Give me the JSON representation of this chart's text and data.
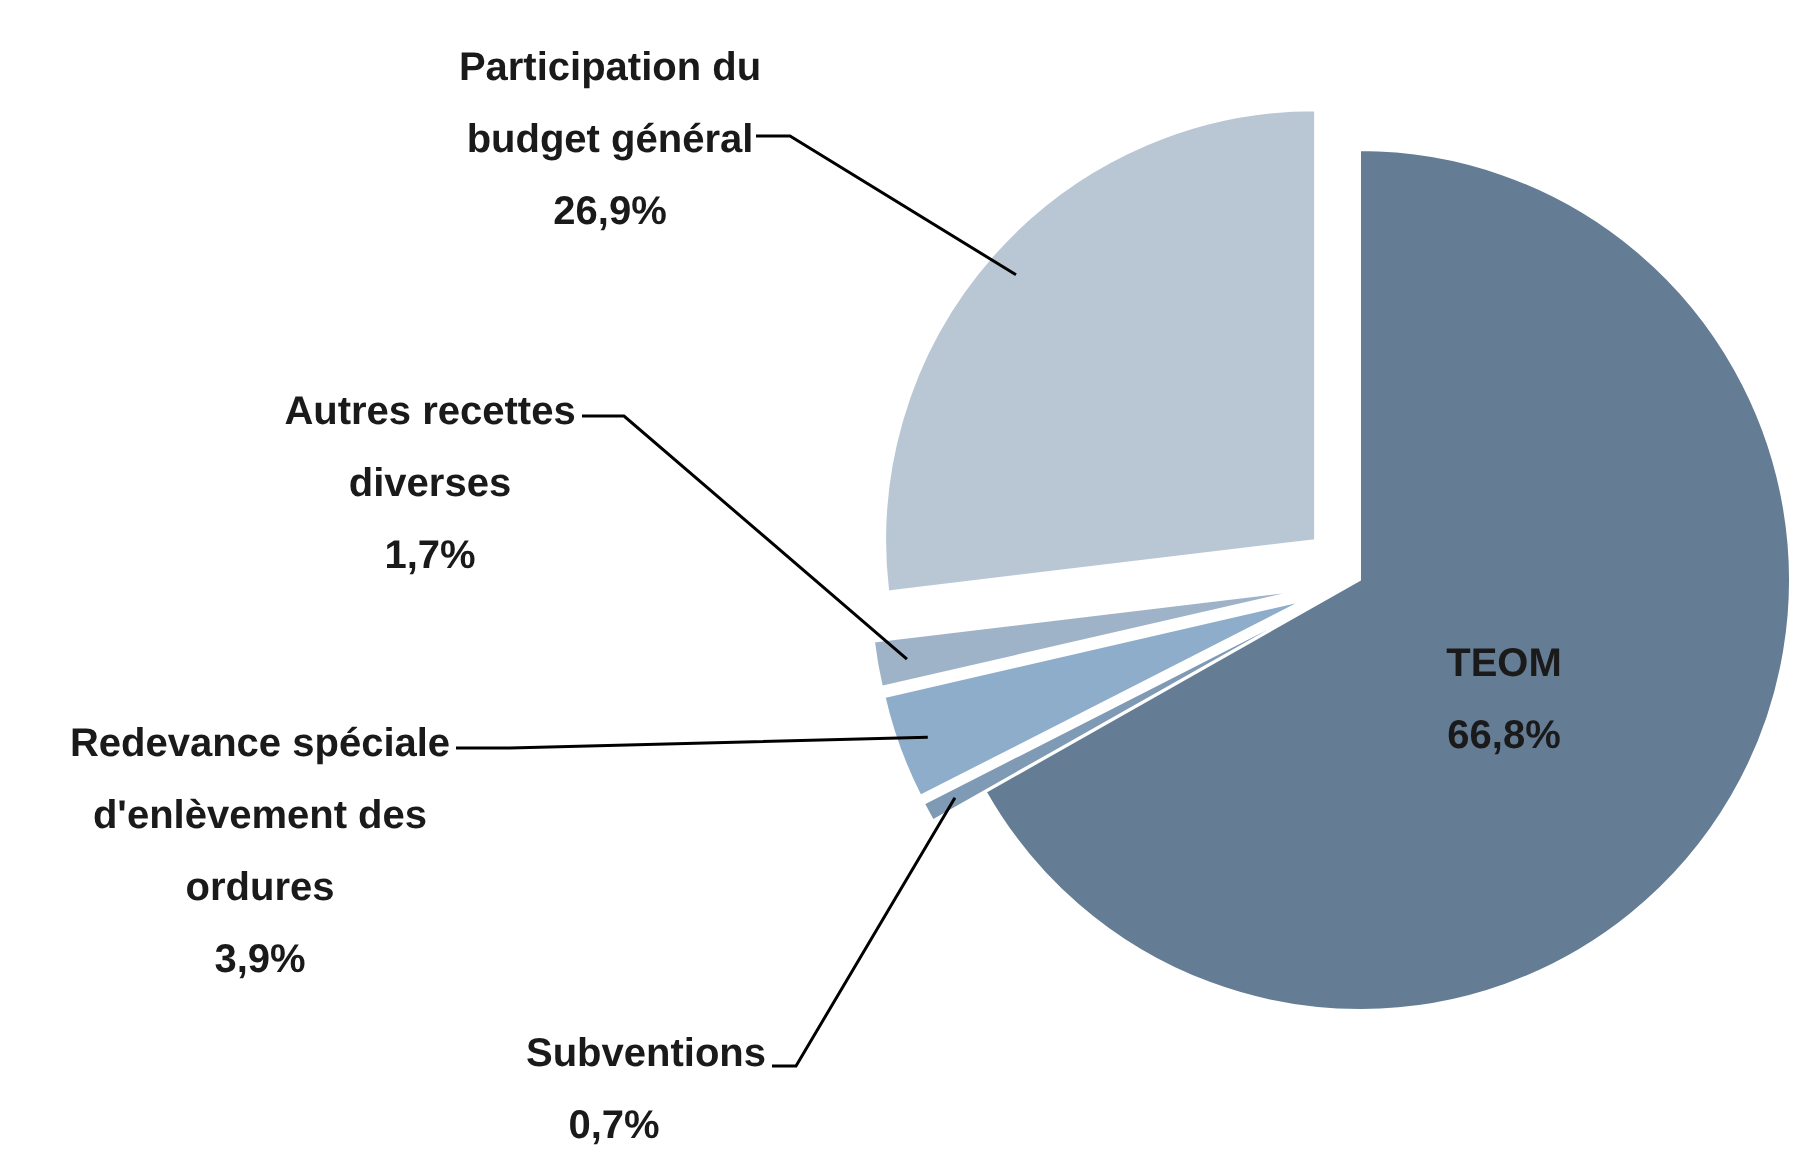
{
  "chart_data": {
    "type": "pie",
    "categories": [
      "TEOM",
      "Subventions",
      "Redevance spéciale d'enlèvement des ordures",
      "Autres recettes diverses",
      "Participation du budget général"
    ],
    "values": [
      66.8,
      0.7,
      3.9,
      1.7,
      26.9
    ],
    "value_labels": [
      "66,8%",
      "0,7%",
      "3,9%",
      "1,7%",
      "26,9%"
    ],
    "colors": [
      "#647d95",
      "#7f9ab4",
      "#8eadcb",
      "#9fb3c8",
      "#b9c7d5"
    ]
  }
}
